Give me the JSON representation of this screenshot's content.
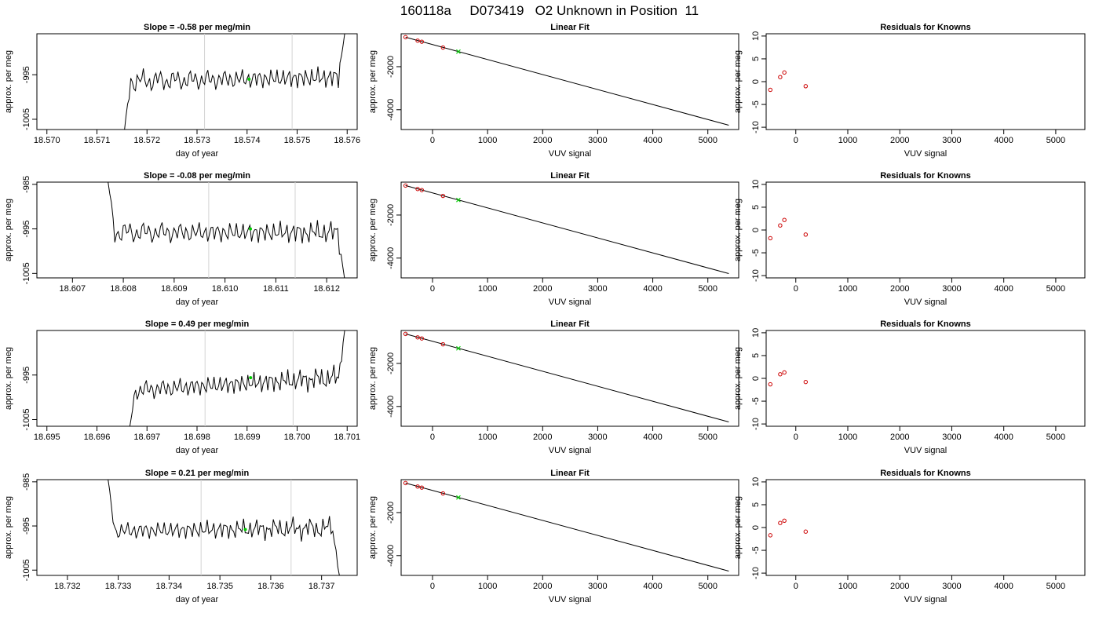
{
  "page_title": "160118a     D073419   O2 Unknown in Position  11",
  "colors": {
    "trace": "#000000",
    "vline": "#d3d3d3",
    "unknown": "#00cc00",
    "known": "#cc0000",
    "fitline": "#000000"
  },
  "chart_data": [
    {
      "type": "line",
      "row": 0,
      "col": 0,
      "title": "Slope =  -0.58  per meg/min",
      "xlabel": "day of year",
      "ylabel": "approx. per meg",
      "xlim": [
        18.5698,
        18.5762
      ],
      "ylim": [
        -1007.3,
        -985.8
      ],
      "xticks": [
        18.57,
        18.571,
        18.572,
        18.573,
        18.574,
        18.575,
        18.576
      ],
      "xtick_labels": [
        "18.570",
        "18.571",
        "18.572",
        "18.573",
        "18.574",
        "18.575",
        "18.576"
      ],
      "yticks": [
        -1005,
        -995
      ],
      "ytick_labels": [
        "-1005",
        "-995"
      ],
      "trace_x_range": [
        18.57155,
        18.57595
      ],
      "trace_start": -1007.5,
      "trace_end": -985.8,
      "trace_mean": -996.0,
      "trace_amplitude": 2.7,
      "trend_per_day": 200,
      "vlines": [
        18.57315,
        18.5749
      ],
      "unknown_point": [
        18.57404,
        -996.0
      ]
    },
    {
      "type": "scatter",
      "row": 0,
      "col": 1,
      "title": "Linear Fit",
      "xlabel": "VUV signal",
      "ylabel": "approx. per meg",
      "xlim": [
        -570,
        5560
      ],
      "ylim": [
        -4920,
        -470
      ],
      "xticks": [
        0,
        1000,
        2000,
        3000,
        4000,
        5000
      ],
      "xtick_labels": [
        "0",
        "1000",
        "2000",
        "3000",
        "4000",
        "5000"
      ],
      "yticks": [
        -4000,
        -2000
      ],
      "ytick_labels": [
        "-4000",
        "-2000"
      ],
      "fit_line": [
        [
          -490,
          -630
        ],
        [
          5380,
          -4720
        ]
      ],
      "known_points": [
        [
          -490,
          -630
        ],
        [
          -270,
          -790
        ],
        [
          -195,
          -840
        ],
        [
          190,
          -1110
        ]
      ],
      "unknown_point": [
        470,
        -1300
      ]
    },
    {
      "type": "scatter",
      "row": 0,
      "col": 2,
      "title": "Residuals for Knowns",
      "xlabel": "VUV signal",
      "ylabel": "approx. per meg",
      "xlim": [
        -570,
        5560
      ],
      "ylim": [
        -10.5,
        10.5
      ],
      "xticks": [
        0,
        1000,
        2000,
        3000,
        4000,
        5000
      ],
      "xtick_labels": [
        "0",
        "1000",
        "2000",
        "3000",
        "4000",
        "5000"
      ],
      "yticks": [
        -10,
        -5,
        0,
        5,
        10
      ],
      "ytick_labels": [
        "-10",
        "-5",
        "0",
        "5",
        "10"
      ],
      "known_points": [
        [
          -490,
          -1.8
        ],
        [
          -300,
          1.0
        ],
        [
          -220,
          2.0
        ],
        [
          190,
          -1.0
        ]
      ]
    },
    {
      "type": "line",
      "row": 1,
      "col": 0,
      "title": "Slope =  -0.08  per meg/min",
      "xlabel": "day of year",
      "ylabel": "approx. per meg",
      "xlim": [
        18.6063,
        18.6126
      ],
      "ylim": [
        -1006.0,
        -984.5
      ],
      "xticks": [
        18.607,
        18.608,
        18.609,
        18.61,
        18.611,
        18.612
      ],
      "xtick_labels": [
        "18.607",
        "18.608",
        "18.609",
        "18.610",
        "18.611",
        "18.612"
      ],
      "yticks": [
        -1005,
        -995,
        -985
      ],
      "ytick_labels": [
        "-1005",
        "-995",
        "-985"
      ],
      "trace_x_range": [
        18.6077,
        18.61235
      ],
      "trace_start": -984.5,
      "trace_end": -1006.0,
      "trace_mean": -995.8,
      "trace_amplitude": 2.8,
      "trend_per_day": 0,
      "vlines": [
        18.60968,
        18.61138
      ],
      "unknown_point": [
        18.6105,
        -995.0
      ]
    },
    {
      "type": "scatter",
      "row": 1,
      "col": 1,
      "title": "Linear Fit",
      "xlabel": "VUV signal",
      "ylabel": "approx. per meg",
      "xlim": [
        -570,
        5560
      ],
      "ylim": [
        -4920,
        -470
      ],
      "xticks": [
        0,
        1000,
        2000,
        3000,
        4000,
        5000
      ],
      "xtick_labels": [
        "0",
        "1000",
        "2000",
        "3000",
        "4000",
        "5000"
      ],
      "yticks": [
        -4000,
        -2000
      ],
      "ytick_labels": [
        "-4000",
        "-2000"
      ],
      "fit_line": [
        [
          -490,
          -630
        ],
        [
          5380,
          -4720
        ]
      ],
      "known_points": [
        [
          -490,
          -630
        ],
        [
          -270,
          -790
        ],
        [
          -195,
          -840
        ],
        [
          190,
          -1110
        ]
      ],
      "unknown_point": [
        470,
        -1300
      ]
    },
    {
      "type": "scatter",
      "row": 1,
      "col": 2,
      "title": "Residuals for Knowns",
      "xlabel": "VUV signal",
      "ylabel": "approx. per meg",
      "xlim": [
        -570,
        5560
      ],
      "ylim": [
        -10.5,
        10.5
      ],
      "xticks": [
        0,
        1000,
        2000,
        3000,
        4000,
        5000
      ],
      "xtick_labels": [
        "0",
        "1000",
        "2000",
        "3000",
        "4000",
        "5000"
      ],
      "yticks": [
        -10,
        -5,
        0,
        5,
        10
      ],
      "ytick_labels": [
        "-10",
        "-5",
        "0",
        "5",
        "10"
      ],
      "known_points": [
        [
          -490,
          -1.8
        ],
        [
          -300,
          1.0
        ],
        [
          -220,
          2.2
        ],
        [
          190,
          -1.0
        ]
      ]
    },
    {
      "type": "line",
      "row": 2,
      "col": 0,
      "title": "Slope =  0.49  per meg/min",
      "xlabel": "day of year",
      "ylabel": "approx. per meg",
      "xlim": [
        18.6948,
        18.7012
      ],
      "ylim": [
        -1006.5,
        -985.0
      ],
      "xticks": [
        18.695,
        18.696,
        18.697,
        18.698,
        18.699,
        18.7,
        18.701
      ],
      "xtick_labels": [
        "18.695",
        "18.696",
        "18.697",
        "18.698",
        "18.699",
        "18.700",
        "18.701"
      ],
      "yticks": [
        -1005,
        -995
      ],
      "ytick_labels": [
        "-1005",
        "-995"
      ],
      "trace_x_range": [
        18.69665,
        18.70095
      ],
      "trace_start": -1007.0,
      "trace_end": -985.0,
      "trace_mean": -997.0,
      "trace_amplitude": 2.6,
      "trend_per_day": 700,
      "vlines": [
        18.69816,
        18.69992
      ],
      "unknown_point": [
        18.69907,
        -995.6
      ]
    },
    {
      "type": "scatter",
      "row": 2,
      "col": 1,
      "title": "Linear Fit",
      "xlabel": "VUV signal",
      "ylabel": "approx. per meg",
      "xlim": [
        -570,
        5560
      ],
      "ylim": [
        -4920,
        -470
      ],
      "xticks": [
        0,
        1000,
        2000,
        3000,
        4000,
        5000
      ],
      "xtick_labels": [
        "0",
        "1000",
        "2000",
        "3000",
        "4000",
        "5000"
      ],
      "yticks": [
        -4000,
        -2000
      ],
      "ytick_labels": [
        "-4000",
        "-2000"
      ],
      "fit_line": [
        [
          -490,
          -630
        ],
        [
          5380,
          -4720
        ]
      ],
      "known_points": [
        [
          -490,
          -630
        ],
        [
          -270,
          -790
        ],
        [
          -195,
          -840
        ],
        [
          190,
          -1110
        ]
      ],
      "unknown_point": [
        470,
        -1300
      ]
    },
    {
      "type": "scatter",
      "row": 2,
      "col": 2,
      "title": "Residuals for Knowns",
      "xlabel": "VUV signal",
      "ylabel": "approx. per meg",
      "xlim": [
        -570,
        5560
      ],
      "ylim": [
        -10.5,
        10.5
      ],
      "xticks": [
        0,
        1000,
        2000,
        3000,
        4000,
        5000
      ],
      "xtick_labels": [
        "0",
        "1000",
        "2000",
        "3000",
        "4000",
        "5000"
      ],
      "yticks": [
        -10,
        -5,
        0,
        5,
        10
      ],
      "ytick_labels": [
        "-10",
        "-5",
        "0",
        "5",
        "10"
      ],
      "known_points": [
        [
          -490,
          -1.3
        ],
        [
          -300,
          0.9
        ],
        [
          -220,
          1.3
        ],
        [
          190,
          -0.8
        ]
      ]
    },
    {
      "type": "line",
      "row": 3,
      "col": 0,
      "title": "Slope =  0.21  per meg/min",
      "xlabel": "day of year",
      "ylabel": "approx. per meg",
      "xlim": [
        18.7314,
        18.7377
      ],
      "ylim": [
        -1006.2,
        -984.5
      ],
      "xticks": [
        18.732,
        18.733,
        18.734,
        18.735,
        18.736,
        18.737
      ],
      "xtick_labels": [
        "18.732",
        "18.733",
        "18.734",
        "18.735",
        "18.736",
        "18.737"
      ],
      "yticks": [
        -1005,
        -995,
        -985
      ],
      "ytick_labels": [
        "-1005",
        "-995",
        "-985"
      ],
      "trace_x_range": [
        18.7328,
        18.73735
      ],
      "trace_start": -984.5,
      "trace_end": -1006.2,
      "trace_mean": -995.8,
      "trace_amplitude": 2.4,
      "trend_per_day": 150,
      "vlines": [
        18.73463,
        18.7364
      ],
      "unknown_point": [
        18.7355,
        -995.8
      ]
    },
    {
      "type": "scatter",
      "row": 3,
      "col": 1,
      "title": "Linear Fit",
      "xlabel": "VUV signal",
      "ylabel": "approx. per meg",
      "xlim": [
        -570,
        5560
      ],
      "ylim": [
        -4920,
        -470
      ],
      "xticks": [
        0,
        1000,
        2000,
        3000,
        4000,
        5000
      ],
      "xtick_labels": [
        "0",
        "1000",
        "2000",
        "3000",
        "4000",
        "5000"
      ],
      "yticks": [
        -4000,
        -2000
      ],
      "ytick_labels": [
        "-4000",
        "-2000"
      ],
      "fit_line": [
        [
          -490,
          -630
        ],
        [
          5380,
          -4720
        ]
      ],
      "known_points": [
        [
          -490,
          -630
        ],
        [
          -270,
          -790
        ],
        [
          -195,
          -840
        ],
        [
          190,
          -1110
        ]
      ],
      "unknown_point": [
        470,
        -1300
      ]
    },
    {
      "type": "scatter",
      "row": 3,
      "col": 2,
      "title": "Residuals for Knowns",
      "xlabel": "VUV signal",
      "ylabel": "approx. per meg",
      "xlim": [
        -570,
        5560
      ],
      "ylim": [
        -10.5,
        10.5
      ],
      "xticks": [
        0,
        1000,
        2000,
        3000,
        4000,
        5000
      ],
      "xtick_labels": [
        "0",
        "1000",
        "2000",
        "3000",
        "4000",
        "5000"
      ],
      "yticks": [
        -10,
        -5,
        0,
        5,
        10
      ],
      "ytick_labels": [
        "-10",
        "-5",
        "0",
        "5",
        "10"
      ],
      "known_points": [
        [
          -490,
          -1.7
        ],
        [
          -300,
          1.0
        ],
        [
          -220,
          1.5
        ],
        [
          190,
          -0.9
        ]
      ]
    }
  ]
}
